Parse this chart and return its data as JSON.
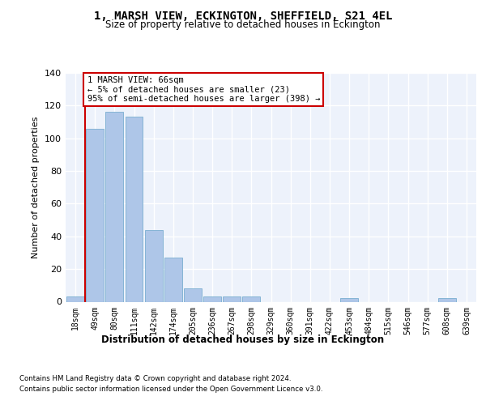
{
  "title": "1, MARSH VIEW, ECKINGTON, SHEFFIELD, S21 4EL",
  "subtitle": "Size of property relative to detached houses in Eckington",
  "xlabel": "Distribution of detached houses by size in Eckington",
  "ylabel": "Number of detached properties",
  "bar_labels": [
    "18sqm",
    "49sqm",
    "80sqm",
    "111sqm",
    "142sqm",
    "174sqm",
    "205sqm",
    "236sqm",
    "267sqm",
    "298sqm",
    "329sqm",
    "360sqm",
    "391sqm",
    "422sqm",
    "453sqm",
    "484sqm",
    "515sqm",
    "546sqm",
    "577sqm",
    "608sqm",
    "639sqm"
  ],
  "bar_heights": [
    3,
    106,
    116,
    113,
    44,
    27,
    8,
    3,
    3,
    3,
    0,
    0,
    0,
    0,
    2,
    0,
    0,
    0,
    0,
    2,
    0
  ],
  "bar_color": "#aec6e8",
  "bar_edgecolor": "#7aaed0",
  "vline_color": "#cc0000",
  "annotation_text": "1 MARSH VIEW: 66sqm\n← 5% of detached houses are smaller (23)\n95% of semi-detached houses are larger (398) →",
  "annotation_box_facecolor": "#ffffff",
  "annotation_box_edgecolor": "#cc0000",
  "ylim": [
    0,
    140
  ],
  "yticks": [
    0,
    20,
    40,
    60,
    80,
    100,
    120,
    140
  ],
  "plot_bg": "#edf2fb",
  "grid_color": "#ffffff",
  "footer_line1": "Contains HM Land Registry data © Crown copyright and database right 2024.",
  "footer_line2": "Contains public sector information licensed under the Open Government Licence v3.0."
}
